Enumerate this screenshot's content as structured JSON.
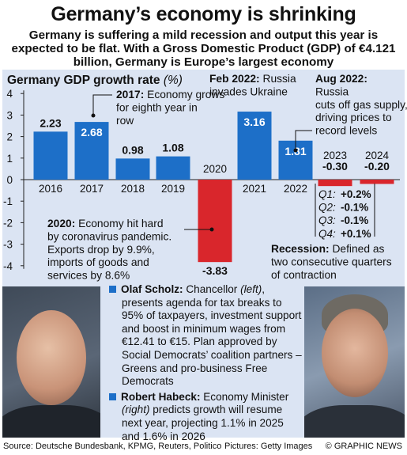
{
  "headline": "Germany’s economy is shrinking",
  "subhead": "Germany is suffering a mild recession and output this year is expected to be flat. With a Gross Domestic Product (GDP) of €4.121 billion, Germany is Europe’s largest economy",
  "chart_data": {
    "type": "bar",
    "title": "Germany GDP growth rate",
    "unit": "(%)",
    "categories": [
      "2016",
      "2017",
      "2018",
      "2019",
      "2020",
      "2021",
      "2022",
      "2023",
      "2024"
    ],
    "values": [
      2.23,
      2.68,
      0.98,
      1.08,
      -3.83,
      3.16,
      1.81,
      -0.3,
      -0.2
    ],
    "value_labels": [
      "2.23",
      "2.68",
      "0.98",
      "1.08",
      "-3.83",
      "3.16",
      "1.81",
      "-0.30",
      "-0.20"
    ],
    "ylim": [
      -4,
      4
    ],
    "yticks": [
      "4",
      "3",
      "2",
      "1",
      "0",
      "-1",
      "-2",
      "-3",
      "-4"
    ],
    "colors": {
      "positive": "#1d6fc8",
      "negative": "#d9262c"
    },
    "annotations": {
      "a2017_bold": "2017:",
      "a2017_text": " Economy grows for eighth year in row",
      "a2020_bold": "2020:",
      "a2020_text": " Economy hit hard by coronavirus pandemic. Exports drop by 9.9%, imports of goods and services by 8.6%",
      "feb_bold": "Feb 2022:",
      "feb_text": " Russia invades Ukraine",
      "aug_bold": "Aug 2022:",
      "aug_text": " Russia cuts off gas supply, driving prices to record levels",
      "recession_bold": "Recession:",
      "recession_text": " Defined as two consecutive quarters of contraction"
    },
    "quarters": [
      {
        "label": "Q1:",
        "value": "+0.2%"
      },
      {
        "label": "Q2:",
        "value": "-0.1%"
      },
      {
        "label": "Q3:",
        "value": "-0.1%"
      },
      {
        "label": "Q4:",
        "value": "+0.1%"
      }
    ]
  },
  "info": {
    "scholz_name": "Olaf Scholz:",
    "scholz_role": " Chancellor ",
    "scholz_pos": "(left)",
    "scholz_text": ", presents agenda for tax breaks to 95% of taxpayers, investment support and boost in minimum wages from €12.41 to €15. Plan approved by Social Democrats’ coalition partners – Greens and pro-business Free Democrats",
    "habeck_name": "Robert Habeck:",
    "habeck_role": " Economy Minister ",
    "habeck_pos": "(right)",
    "habeck_text": " predicts growth will resume next year, projecting 1.1% in 2025 and 1.6% in 2026"
  },
  "footer": {
    "source": "Source: Deutsche Bundesbank, KPMG, Reuters, Politico",
    "pictures": "Pictures: Getty Images",
    "credit": "© GRAPHIC NEWS"
  }
}
